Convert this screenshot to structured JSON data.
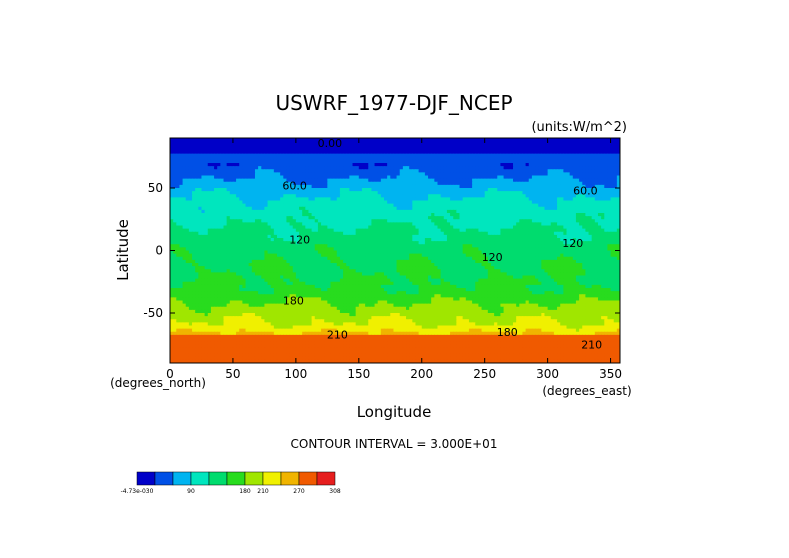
{
  "chart_data": {
    "type": "heatmap",
    "title": "USWRF_1977-DJF_NCEP",
    "units_label": "(units:W/m^2)",
    "xlabel": "Longitude",
    "ylabel": "Latitude",
    "x_unit": "(degrees_east)",
    "y_unit": "(degrees_north)",
    "contour_interval_text": "CONTOUR INTERVAL = 3.000E+01",
    "xlim": [
      0,
      357.5
    ],
    "ylim": [
      -90,
      90
    ],
    "x_ticks": [
      0,
      50,
      100,
      150,
      200,
      250,
      300,
      350
    ],
    "y_ticks": [
      50,
      0,
      -50
    ],
    "contour_labels": [
      {
        "text": "0.00",
        "x": 127,
        "y": 86
      },
      {
        "text": "60.0",
        "x": 99,
        "y": 52
      },
      {
        "text": "60.0",
        "x": 330,
        "y": 48
      },
      {
        "text": "120",
        "x": 103,
        "y": 9
      },
      {
        "text": "120",
        "x": 256,
        "y": -5
      },
      {
        "text": "120",
        "x": 320,
        "y": 6
      },
      {
        "text": "180",
        "x": 98,
        "y": -40
      },
      {
        "text": "210",
        "x": 133,
        "y": -67
      },
      {
        "text": "180",
        "x": 268,
        "y": -65
      },
      {
        "text": "210",
        "x": 335,
        "y": -75
      }
    ],
    "field_profile": [
      {
        "lat": 90,
        "value": 10
      },
      {
        "lat": 85,
        "value": 20
      },
      {
        "lat": 80,
        "value": 25
      },
      {
        "lat": 60,
        "value": 55
      },
      {
        "lat": 50,
        "value": 75
      },
      {
        "lat": 40,
        "value": 95
      },
      {
        "lat": 30,
        "value": 105
      },
      {
        "lat": 20,
        "value": 118
      },
      {
        "lat": 10,
        "value": 130
      },
      {
        "lat": 0,
        "value": 140
      },
      {
        "lat": -10,
        "value": 145
      },
      {
        "lat": -20,
        "value": 148
      },
      {
        "lat": -30,
        "value": 155
      },
      {
        "lat": -40,
        "value": 175
      },
      {
        "lat": -50,
        "value": 195
      },
      {
        "lat": -60,
        "value": 215
      },
      {
        "lat": -66,
        "value": 240
      },
      {
        "lat": -70,
        "value": 285
      },
      {
        "lat": -80,
        "value": 290
      },
      {
        "lat": -90,
        "value": 285
      }
    ],
    "colorbar": {
      "tick_labels": [
        "-4.73e-030",
        "90",
        "180",
        "210",
        "270",
        "308"
      ],
      "levels": [
        0,
        30,
        60,
        90,
        120,
        150,
        180,
        210,
        240,
        270,
        300,
        308
      ],
      "colors": [
        "#0000c8",
        "#0050e6",
        "#00b4f0",
        "#00e6be",
        "#00dc6e",
        "#28dc1e",
        "#a0e600",
        "#f0f000",
        "#f0b400",
        "#f05a00",
        "#e61e1e"
      ]
    }
  }
}
